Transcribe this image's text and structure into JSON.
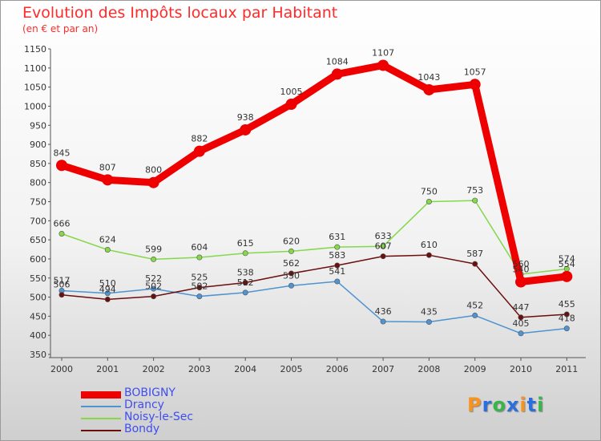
{
  "chart_data": {
    "type": "line",
    "title": "Evolution des Impôts locaux par Habitant",
    "subtitle": "(en € et par an)",
    "categories": [
      "2000",
      "2001",
      "2002",
      "2003",
      "2004",
      "2005",
      "2006",
      "2007",
      "2008",
      "2009",
      "2010",
      "2011"
    ],
    "ylim": [
      350,
      1150
    ],
    "yticks": [
      350,
      400,
      450,
      500,
      550,
      600,
      650,
      700,
      750,
      800,
      850,
      900,
      950,
      1000,
      1050,
      1100,
      1150
    ],
    "grid": false,
    "series": [
      {
        "name": "BOBIGNY",
        "color": "#ee0000",
        "values": [
          845,
          807,
          800,
          882,
          938,
          1005,
          1084,
          1107,
          1043,
          1057,
          540,
          554
        ]
      },
      {
        "name": "Drancy",
        "color": "#4f93d1",
        "values": [
          517,
          510,
          522,
          502,
          512,
          530,
          541,
          436,
          435,
          452,
          405,
          418
        ]
      },
      {
        "name": "Noisy-le-Sec",
        "color": "#84d84a",
        "values": [
          666,
          624,
          599,
          604,
          615,
          620,
          631,
          633,
          750,
          753,
          560,
          574
        ]
      },
      {
        "name": "Bondy",
        "color": "#6a0e0e",
        "values": [
          506,
          494,
          502,
          525,
          538,
          562,
          583,
          607,
          610,
          587,
          447,
          455
        ]
      }
    ]
  },
  "brand": {
    "letters": [
      "P",
      "r",
      "o",
      "x",
      "i",
      "t",
      "i"
    ],
    "colors": [
      "#f7941d",
      "#2a6ee0",
      "#39b54a",
      "#2a6ee0",
      "#f7941d",
      "#2a6ee0",
      "#39b54a"
    ]
  }
}
